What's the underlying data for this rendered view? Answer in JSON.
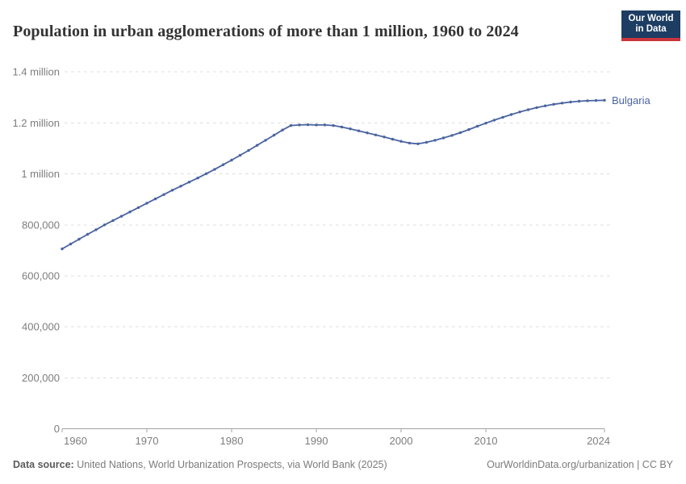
{
  "header": {
    "title": "Population in urban agglomerations of more than 1 million, 1960 to 2024",
    "logo_line1": "Our World",
    "logo_line2": "in Data"
  },
  "chart_data": {
    "type": "line",
    "title": "Population in urban agglomerations of more than 1 million, 1960 to 2024",
    "xlabel": "",
    "ylabel": "",
    "xlim": [
      1960,
      2024
    ],
    "ylim": [
      0,
      1400000
    ],
    "grid": "horizontal-dashed",
    "legend_position": "end-of-line-label",
    "x": [
      1960,
      1961,
      1962,
      1963,
      1964,
      1965,
      1966,
      1967,
      1968,
      1969,
      1970,
      1971,
      1972,
      1973,
      1974,
      1975,
      1976,
      1977,
      1978,
      1979,
      1980,
      1981,
      1982,
      1983,
      1984,
      1985,
      1986,
      1987,
      1988,
      1989,
      1990,
      1991,
      1992,
      1993,
      1994,
      1995,
      1996,
      1997,
      1998,
      1999,
      2000,
      2001,
      2002,
      2003,
      2004,
      2005,
      2006,
      2007,
      2008,
      2009,
      2010,
      2011,
      2012,
      2013,
      2014,
      2015,
      2016,
      2017,
      2018,
      2019,
      2020,
      2021,
      2022,
      2023,
      2024
    ],
    "series": [
      {
        "name": "Bulgaria",
        "color": "#4a64a1",
        "values": [
          706000,
          725000,
          744000,
          763000,
          781000,
          800000,
          817000,
          834000,
          851000,
          868000,
          885000,
          902000,
          919000,
          936000,
          952000,
          968000,
          984000,
          1001000,
          1018000,
          1036000,
          1054000,
          1073000,
          1092000,
          1112000,
          1132000,
          1152000,
          1172000,
          1190000,
          1192000,
          1193000,
          1192000,
          1192000,
          1190000,
          1184000,
          1177000,
          1169000,
          1161000,
          1153000,
          1145000,
          1136000,
          1128000,
          1121000,
          1118000,
          1124000,
          1132000,
          1141000,
          1151000,
          1162000,
          1174000,
          1187000,
          1199000,
          1211000,
          1222000,
          1233000,
          1243000,
          1252000,
          1260000,
          1267000,
          1273000,
          1278000,
          1282000,
          1285000,
          1287000,
          1288000,
          1289000
        ]
      }
    ],
    "yticks": [
      {
        "value": 0,
        "label": "0"
      },
      {
        "value": 200000,
        "label": "200,000"
      },
      {
        "value": 400000,
        "label": "400,000"
      },
      {
        "value": 600000,
        "label": "600,000"
      },
      {
        "value": 800000,
        "label": "800,000"
      },
      {
        "value": 1000000,
        "label": "1 million"
      },
      {
        "value": 1200000,
        "label": "1.2 million"
      },
      {
        "value": 1400000,
        "label": "1.4 million"
      }
    ],
    "xticks": [
      {
        "year": 1960,
        "label": "1960"
      },
      {
        "year": 1970,
        "label": "1970"
      },
      {
        "year": 1980,
        "label": "1980"
      },
      {
        "year": 1990,
        "label": "1990"
      },
      {
        "year": 2000,
        "label": "2000"
      },
      {
        "year": 2010,
        "label": "2010"
      },
      {
        "year": 2024,
        "label": "2024"
      }
    ]
  },
  "colors": {
    "series_line": "#4a64a1",
    "title_text": "#333333",
    "tick_label": "#7d7d7d",
    "gridline": "#dcdcdc",
    "axis_line": "#a3a3a3",
    "logo_navy": "#1d3d63",
    "logo_red": "#c9353d"
  },
  "footer": {
    "source_label": "Data source:",
    "source_text": " United Nations, World Urbanization Prospects, via World Bank (2025)",
    "link_text": "OurWorldinData.org/urbanization | CC BY"
  }
}
